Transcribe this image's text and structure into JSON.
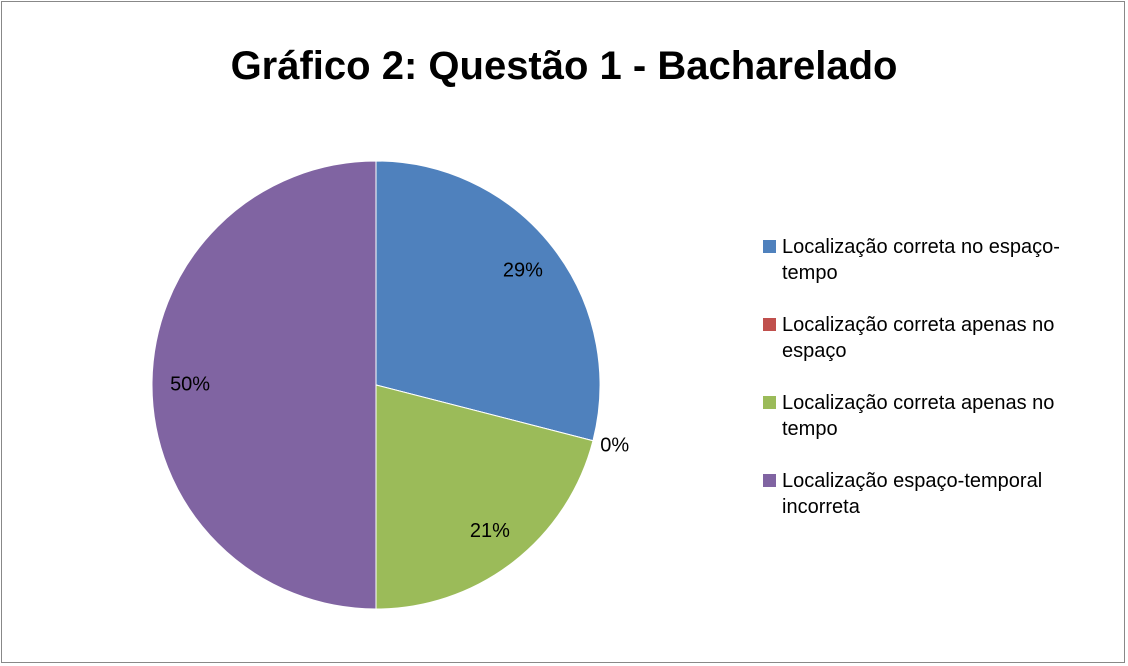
{
  "chart_data": {
    "type": "pie",
    "title": "Gráfico 2: Questão 1 - Bacharelado",
    "categories": [
      "Localização correta no espaço-tempo",
      "Localização correta apenas no espaço",
      "Localização correta apenas no tempo",
      "Localização espaço-temporal incorreta"
    ],
    "values": [
      29,
      0,
      21,
      50
    ],
    "value_labels": [
      "29%",
      "0%",
      "21%",
      "50%"
    ],
    "colors": [
      "#4f81bd",
      "#c0504d",
      "#9bbb59",
      "#8064a2"
    ],
    "legend": "right"
  }
}
